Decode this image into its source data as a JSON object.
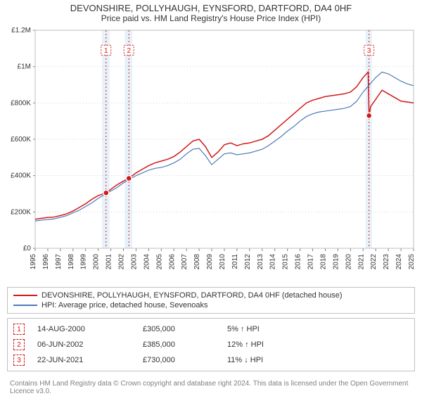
{
  "title_main": "DEVONSHIRE, POLLYHAUGH, EYNSFORD, DARTFORD, DA4 0HF",
  "title_sub": "Price paid vs. HM Land Registry's House Price Index (HPI)",
  "chart": {
    "type": "line",
    "background_color": "#ffffff",
    "plot_border_color": "#bfbfbf",
    "plot_border_width": 1,
    "grid_color": "#d0d0d0",
    "grid_width": 1,
    "grid_dash": "1 3",
    "highlight_band_color": "#cfe4f5",
    "highlight_band_opacity": 0.5,
    "label_fontsize": 10,
    "label_color": "#333333",
    "tick_color": "#808080",
    "y_axis": {
      "min": 0,
      "max": 1200000,
      "ticks": [
        0,
        200000,
        400000,
        600000,
        800000,
        1000000,
        1200000
      ],
      "tick_labels": [
        "£0",
        "£200K",
        "£400K",
        "£600K",
        "£800K",
        "£1M",
        "£1.2M"
      ]
    },
    "x_axis": {
      "min": 1995,
      "max": 2025,
      "ticks": [
        1995,
        1996,
        1997,
        1998,
        1999,
        2000,
        2001,
        2002,
        2003,
        2004,
        2005,
        2006,
        2007,
        2008,
        2009,
        2010,
        2011,
        2012,
        2013,
        2014,
        2015,
        2016,
        2017,
        2018,
        2019,
        2020,
        2021,
        2022,
        2023,
        2024,
        2025
      ],
      "tick_labels": [
        "1995",
        "1996",
        "1997",
        "1998",
        "1999",
        "2000",
        "2001",
        "2002",
        "2003",
        "2004",
        "2005",
        "2006",
        "2007",
        "2008",
        "2009",
        "2010",
        "2011",
        "2012",
        "2013",
        "2014",
        "2015",
        "2016",
        "2017",
        "2018",
        "2019",
        "2020",
        "2021",
        "2022",
        "2023",
        "2024",
        "2025"
      ],
      "rotate_labels_deg": -90
    },
    "highlight_bands": [
      {
        "x_start": 2000.3,
        "x_end": 2000.9
      },
      {
        "x_start": 2002.1,
        "x_end": 2002.7
      },
      {
        "x_start": 2021.2,
        "x_end": 2021.7
      }
    ],
    "markers": [
      {
        "id": "1",
        "x": 2000.62,
        "y_point": 305000,
        "y_box": 1090000,
        "box_color": "#d11919"
      },
      {
        "id": "2",
        "x": 2002.43,
        "y_point": 385000,
        "y_box": 1090000,
        "box_color": "#d11919"
      },
      {
        "id": "3",
        "x": 2021.47,
        "y_point": 730000,
        "y_box": 1090000,
        "box_color": "#d11919"
      }
    ],
    "marker_vline_color": "#d11919",
    "marker_vline_dash": "2 3",
    "marker_point_radius": 4,
    "marker_point_fill": "#d11919",
    "marker_point_stroke": "#ffffff",
    "marker_box_width": 14,
    "marker_box_height": 14,
    "series": [
      {
        "key": "price_paid",
        "label": "DEVONSHIRE, POLLYHAUGH, EYNSFORD, DARTFORD, DA4 0HF (detached house)",
        "color": "#d11919",
        "line_width": 1.5,
        "data": [
          [
            1995.0,
            160000
          ],
          [
            1995.5,
            165000
          ],
          [
            1996.0,
            170000
          ],
          [
            1996.5,
            172000
          ],
          [
            1997.0,
            180000
          ],
          [
            1997.5,
            190000
          ],
          [
            1998.0,
            205000
          ],
          [
            1998.5,
            225000
          ],
          [
            1999.0,
            245000
          ],
          [
            1999.5,
            270000
          ],
          [
            2000.0,
            290000
          ],
          [
            2000.62,
            305000
          ],
          [
            2001.0,
            325000
          ],
          [
            2001.5,
            350000
          ],
          [
            2002.0,
            370000
          ],
          [
            2002.43,
            385000
          ],
          [
            2003.0,
            415000
          ],
          [
            2003.5,
            435000
          ],
          [
            2004.0,
            455000
          ],
          [
            2004.5,
            470000
          ],
          [
            2005.0,
            480000
          ],
          [
            2005.5,
            490000
          ],
          [
            2006.0,
            505000
          ],
          [
            2006.5,
            530000
          ],
          [
            2007.0,
            560000
          ],
          [
            2007.5,
            590000
          ],
          [
            2008.0,
            600000
          ],
          [
            2008.5,
            560000
          ],
          [
            2009.0,
            500000
          ],
          [
            2009.5,
            530000
          ],
          [
            2010.0,
            570000
          ],
          [
            2010.5,
            580000
          ],
          [
            2011.0,
            565000
          ],
          [
            2011.5,
            575000
          ],
          [
            2012.0,
            580000
          ],
          [
            2012.5,
            590000
          ],
          [
            2013.0,
            600000
          ],
          [
            2013.5,
            620000
          ],
          [
            2014.0,
            650000
          ],
          [
            2014.5,
            680000
          ],
          [
            2015.0,
            710000
          ],
          [
            2015.5,
            740000
          ],
          [
            2016.0,
            770000
          ],
          [
            2016.5,
            800000
          ],
          [
            2017.0,
            815000
          ],
          [
            2017.5,
            825000
          ],
          [
            2018.0,
            835000
          ],
          [
            2018.5,
            840000
          ],
          [
            2019.0,
            845000
          ],
          [
            2019.5,
            850000
          ],
          [
            2020.0,
            860000
          ],
          [
            2020.5,
            890000
          ],
          [
            2021.0,
            940000
          ],
          [
            2021.4,
            970000
          ],
          [
            2021.47,
            730000
          ],
          [
            2021.6,
            780000
          ],
          [
            2022.0,
            820000
          ],
          [
            2022.5,
            870000
          ],
          [
            2023.0,
            850000
          ],
          [
            2023.5,
            830000
          ],
          [
            2024.0,
            810000
          ],
          [
            2024.5,
            805000
          ],
          [
            2025.0,
            800000
          ]
        ]
      },
      {
        "key": "hpi",
        "label": "HPI: Average price, detached house, Sevenoaks",
        "color": "#4d79b8",
        "line_width": 1.2,
        "data": [
          [
            1995.0,
            150000
          ],
          [
            1995.5,
            155000
          ],
          [
            1996.0,
            158000
          ],
          [
            1996.5,
            162000
          ],
          [
            1997.0,
            170000
          ],
          [
            1997.5,
            180000
          ],
          [
            1998.0,
            195000
          ],
          [
            1998.5,
            210000
          ],
          [
            1999.0,
            230000
          ],
          [
            1999.5,
            250000
          ],
          [
            2000.0,
            275000
          ],
          [
            2000.5,
            295000
          ],
          [
            2001.0,
            315000
          ],
          [
            2001.5,
            335000
          ],
          [
            2002.0,
            360000
          ],
          [
            2002.5,
            380000
          ],
          [
            2003.0,
            400000
          ],
          [
            2003.5,
            415000
          ],
          [
            2004.0,
            430000
          ],
          [
            2004.5,
            440000
          ],
          [
            2005.0,
            445000
          ],
          [
            2005.5,
            455000
          ],
          [
            2006.0,
            470000
          ],
          [
            2006.5,
            490000
          ],
          [
            2007.0,
            520000
          ],
          [
            2007.5,
            545000
          ],
          [
            2008.0,
            550000
          ],
          [
            2008.5,
            510000
          ],
          [
            2009.0,
            460000
          ],
          [
            2009.5,
            490000
          ],
          [
            2010.0,
            520000
          ],
          [
            2010.5,
            525000
          ],
          [
            2011.0,
            515000
          ],
          [
            2011.5,
            520000
          ],
          [
            2012.0,
            525000
          ],
          [
            2012.5,
            535000
          ],
          [
            2013.0,
            545000
          ],
          [
            2013.5,
            565000
          ],
          [
            2014.0,
            590000
          ],
          [
            2014.5,
            615000
          ],
          [
            2015.0,
            645000
          ],
          [
            2015.5,
            670000
          ],
          [
            2016.0,
            700000
          ],
          [
            2016.5,
            725000
          ],
          [
            2017.0,
            740000
          ],
          [
            2017.5,
            750000
          ],
          [
            2018.0,
            755000
          ],
          [
            2018.5,
            760000
          ],
          [
            2019.0,
            765000
          ],
          [
            2019.5,
            770000
          ],
          [
            2020.0,
            780000
          ],
          [
            2020.5,
            810000
          ],
          [
            2021.0,
            860000
          ],
          [
            2021.5,
            900000
          ],
          [
            2022.0,
            940000
          ],
          [
            2022.5,
            970000
          ],
          [
            2023.0,
            960000
          ],
          [
            2023.5,
            940000
          ],
          [
            2024.0,
            920000
          ],
          [
            2024.5,
            905000
          ],
          [
            2025.0,
            895000
          ]
        ]
      }
    ]
  },
  "legend": {
    "items": [
      {
        "series_key": "price_paid"
      },
      {
        "series_key": "hpi"
      }
    ]
  },
  "transactions": [
    {
      "marker_id": "1",
      "date": "14-AUG-2000",
      "price": "£305,000",
      "pct": "5%",
      "direction": "up",
      "direction_glyph": "↑",
      "vs_label": "HPI",
      "box_color": "#d11919"
    },
    {
      "marker_id": "2",
      "date": "06-JUN-2002",
      "price": "£385,000",
      "pct": "12%",
      "direction": "up",
      "direction_glyph": "↑",
      "vs_label": "HPI",
      "box_color": "#d11919"
    },
    {
      "marker_id": "3",
      "date": "22-JUN-2021",
      "price": "£730,000",
      "pct": "11%",
      "direction": "down",
      "direction_glyph": "↓",
      "vs_label": "HPI",
      "box_color": "#d11919"
    }
  ],
  "footer": "Contains HM Land Registry data © Crown copyright and database right 2024. This data is licensed under the Open Government Licence v3.0."
}
